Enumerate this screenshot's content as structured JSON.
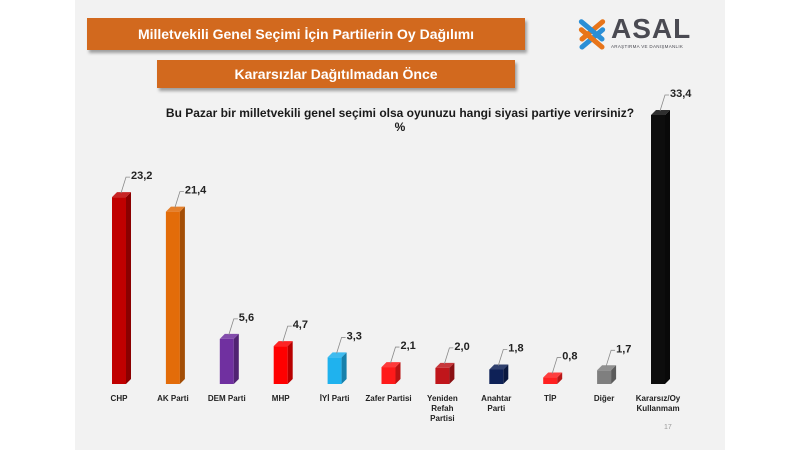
{
  "banner": {
    "title": "Milletvekili Genel Seçimi İçin Partilerin Oy Dağılımı",
    "subtitle": "Kararsızlar Dağıtılmadan Önce"
  },
  "logo": {
    "name": "ASAL",
    "tagline": "ARAŞTIRMA VE DANIŞMANLIK",
    "colors": [
      "#e8751a",
      "#2b8fd6"
    ]
  },
  "question": "Bu Pazar bir milletvekili genel seçimi olsa oyunuzu hangi siyasi partiye verirsiniz?",
  "unit": "%",
  "page_number": "17",
  "chart_data": {
    "type": "bar",
    "title": "Bu Pazar bir milletvekili genel seçimi olsa oyunuzu hangi siyasi partiye verirsiniz?",
    "ylabel": "%",
    "ylim": [
      0,
      35
    ],
    "grid": false,
    "categories": [
      [
        "CHP"
      ],
      [
        "AK Parti"
      ],
      [
        "DEM Parti"
      ],
      [
        "MHP"
      ],
      [
        "İYİ Parti"
      ],
      [
        "Zafer Partisi"
      ],
      [
        "Yeniden",
        "Refah",
        "Partisi"
      ],
      [
        "Anahtar",
        "Parti"
      ],
      [
        "TİP"
      ],
      [
        "Diğer"
      ],
      [
        "Kararsız/Oy",
        "Kullanmam"
      ]
    ],
    "values": [
      23.2,
      21.4,
      5.6,
      4.7,
      3.3,
      2.1,
      2.0,
      1.8,
      0.8,
      1.7,
      33.4
    ],
    "value_labels": [
      "23,2",
      "21,4",
      "5,6",
      "4,7",
      "3,3",
      "2,1",
      "2,0",
      "1,8",
      "0,8",
      "1,7",
      "33,4"
    ],
    "colors": [
      "#c00000",
      "#e36c09",
      "#7030a0",
      "#ff0000",
      "#1fb2ee",
      "#ff1a1a",
      "#c0161b",
      "#0e2157",
      "#ff2020",
      "#7f7f7f",
      "#0d0d0d"
    ]
  }
}
